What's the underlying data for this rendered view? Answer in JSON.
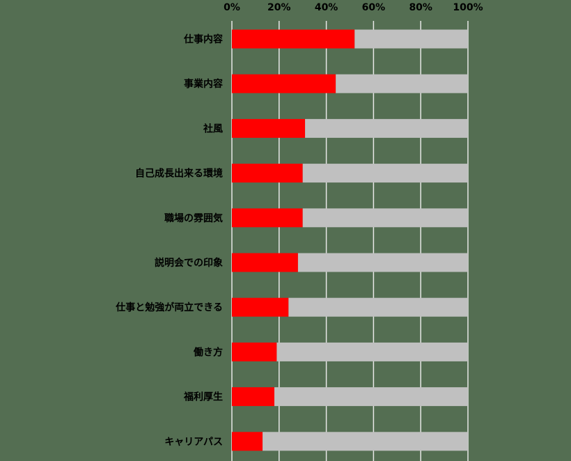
{
  "chart_data": {
    "type": "bar",
    "orientation": "horizontal",
    "stacked_to_100": true,
    "categories": [
      "仕事内容",
      "事業内容",
      "社風",
      "自己成長出来る環境",
      "職場の雰囲気",
      "説明会での印象",
      "仕事と勉強が両立できる",
      "働き方",
      "福利厚生",
      "キャリアパス"
    ],
    "series": [
      {
        "values": [
          52,
          44,
          31,
          30,
          30,
          28,
          24,
          19,
          18,
          13
        ],
        "color": "#ff0000"
      },
      {
        "values": [
          48,
          56,
          69,
          70,
          70,
          72,
          76,
          81,
          82,
          87
        ],
        "color": "#c0c0c0"
      }
    ],
    "xlim": [
      0,
      100
    ],
    "x_ticks": [
      "0%",
      "20%",
      "40%",
      "60%",
      "80%",
      "100%"
    ],
    "x_axis_position": "top",
    "grid": true,
    "legend": "none",
    "title": "",
    "xlabel": "",
    "ylabel": ""
  },
  "colors": {
    "background": "#546e52",
    "gridline": "#e8e8e8",
    "text": "#000000"
  }
}
